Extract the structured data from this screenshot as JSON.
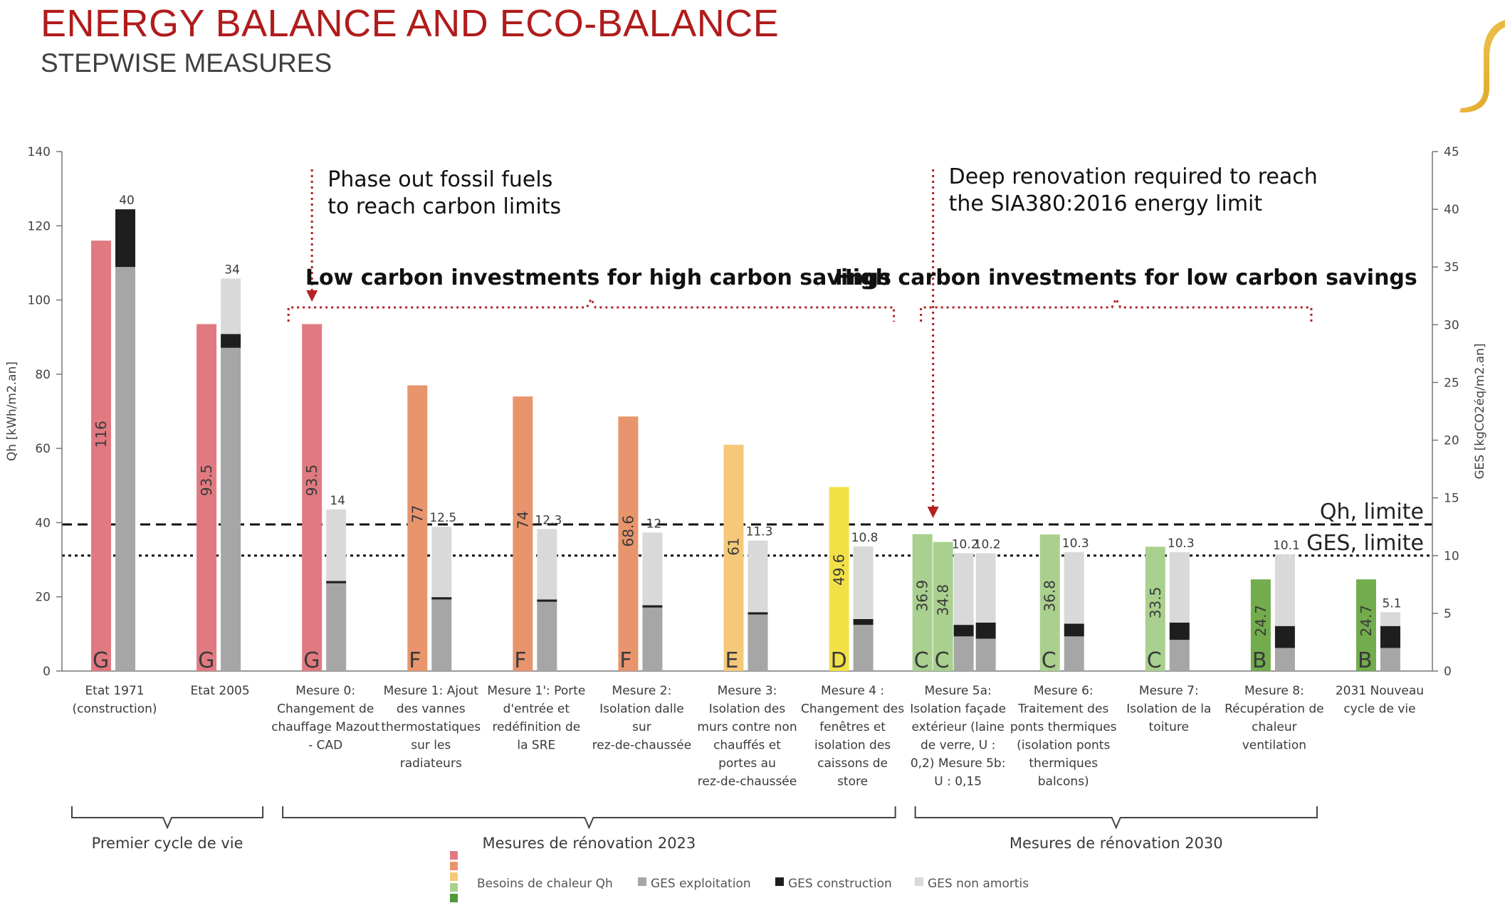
{
  "header": {
    "title": "ENERGY BALANCE AND ECO-BALANCE",
    "subtitle": "STEPWISE MEASURES"
  },
  "chart_data": {
    "type": "bar",
    "y_left": {
      "label": "Qh [kWh/m2.an]",
      "lim": [
        0,
        140
      ],
      "ticks": [
        0,
        20,
        40,
        60,
        80,
        100,
        120,
        140
      ]
    },
    "y_right": {
      "label": "GES [kgCO2éq/m2.an]",
      "lim": [
        0,
        45
      ],
      "ticks": [
        0,
        5,
        10,
        15,
        20,
        25,
        30,
        35,
        40,
        45
      ]
    },
    "reference_lines": [
      {
        "label": "Qh, limite",
        "axis": "left",
        "value": 39.5,
        "style": "dashed"
      },
      {
        "label": "GES, limite",
        "axis": "right",
        "value": 10,
        "style": "dotted"
      }
    ],
    "categories": [
      {
        "label": "Etat 1971 (construction)",
        "qh": [
          {
            "value": 116,
            "label": "116",
            "energy_class": "G",
            "color": "#e07a80"
          }
        ],
        "ges": [
          {
            "exploitation": 35,
            "construction": 5,
            "non_amortis": 0,
            "label": "40"
          }
        ]
      },
      {
        "label": "Etat 2005",
        "qh": [
          {
            "value": 93.5,
            "label": "93.5",
            "energy_class": "G",
            "color": "#e07a80"
          }
        ],
        "ges": [
          {
            "exploitation": 28,
            "construction": 1.2,
            "non_amortis": 4.8,
            "label": "34"
          }
        ]
      },
      {
        "label": "Mesure 0: Changement de chauffage Mazout - CAD",
        "qh": [
          {
            "value": 93.5,
            "label": "93.5",
            "energy_class": "G",
            "color": "#e07a80"
          }
        ],
        "ges": [
          {
            "exploitation": 7.6,
            "construction": 0.2,
            "non_amortis": 6.2,
            "label": "14"
          }
        ]
      },
      {
        "label": "Mesure 1: Ajout des vannes thermostatiques sur les radiateurs",
        "qh": [
          {
            "value": 77,
            "label": "77",
            "energy_class": "F",
            "color": "#e8956d"
          }
        ],
        "ges": [
          {
            "exploitation": 6.2,
            "construction": 0.2,
            "non_amortis": 6.1,
            "label": "12.5"
          }
        ]
      },
      {
        "label": "Mesure 1': Porte d'entrée et redéfinition de la SRE",
        "qh": [
          {
            "value": 74,
            "label": "74",
            "energy_class": "F",
            "color": "#e8956d"
          }
        ],
        "ges": [
          {
            "exploitation": 6,
            "construction": 0.2,
            "non_amortis": 6.1,
            "label": "12.3"
          }
        ]
      },
      {
        "label": "Mesure 2: Isolation dalle sur rez-de-chaussée",
        "qh": [
          {
            "value": 68.6,
            "label": "68.6",
            "energy_class": "F",
            "color": "#e8956d"
          }
        ],
        "ges": [
          {
            "exploitation": 5.5,
            "construction": 0.2,
            "non_amortis": 6.3,
            "label": "12"
          }
        ]
      },
      {
        "label": "Mesure 3: Isolation des murs contre non chauffés et portes au rez-de-chaussée",
        "qh": [
          {
            "value": 61,
            "label": "61",
            "energy_class": "E",
            "color": "#f5c979"
          }
        ],
        "ges": [
          {
            "exploitation": 4.9,
            "construction": 0.2,
            "non_amortis": 6.2,
            "label": "11.3"
          }
        ]
      },
      {
        "label": "Mesure 4 : Changement des fenêtres et isolation des caissons de store",
        "qh": [
          {
            "value": 49.6,
            "label": "49.6",
            "energy_class": "D",
            "color": "#f2e146"
          }
        ],
        "ges": [
          {
            "exploitation": 4,
            "construction": 0.5,
            "non_amortis": 6.3,
            "label": "10.8"
          }
        ]
      },
      {
        "label": "Mesure 5a: Isolation façade extérieur (laine de verre, U : 0,2) Mesure 5b: U : 0,15",
        "qh": [
          {
            "value": 36.9,
            "label": "36.9",
            "energy_class": "C",
            "color": "#a9d08e"
          },
          {
            "value": 34.8,
            "label": "34.8",
            "energy_class": "C",
            "color": "#a9d08e"
          }
        ],
        "ges": [
          {
            "exploitation": 3,
            "construction": 1,
            "non_amortis": 6.2,
            "label": "10.2"
          },
          {
            "exploitation": 2.8,
            "construction": 1.4,
            "non_amortis": 6,
            "label": "10.2"
          }
        ]
      },
      {
        "label": "Mesure 6: Traitement des ponts thermiques (isolation ponts thermiques balcons)",
        "qh": [
          {
            "value": 36.8,
            "label": "36.8",
            "energy_class": "C",
            "color": "#a9d08e"
          }
        ],
        "ges": [
          {
            "exploitation": 3,
            "construction": 1.1,
            "non_amortis": 6.2,
            "label": "10.3"
          }
        ]
      },
      {
        "label": "Mesure 7: Isolation de la toiture",
        "qh": [
          {
            "value": 33.5,
            "label": "33.5",
            "energy_class": "C",
            "color": "#a9d08e"
          }
        ],
        "ges": [
          {
            "exploitation": 2.7,
            "construction": 1.5,
            "non_amortis": 6.1,
            "label": "10.3"
          }
        ]
      },
      {
        "label": "Mesure 8: Récupération de chaleur ventilation",
        "qh": [
          {
            "value": 24.7,
            "label": "24.7",
            "energy_class": "B",
            "color": "#72ac4d"
          }
        ],
        "ges": [
          {
            "exploitation": 2,
            "construction": 1.9,
            "non_amortis": 6.2,
            "label": "10.1"
          }
        ]
      },
      {
        "label": "2031 Nouveau cycle de vie",
        "qh": [
          {
            "value": 24.7,
            "label": "24.7",
            "energy_class": "B",
            "color": "#72ac4d"
          }
        ],
        "ges": [
          {
            "exploitation": 2,
            "construction": 1.9,
            "non_amortis": 1.2,
            "label": "5.1"
          }
        ]
      }
    ],
    "groups": [
      {
        "label": "Premier cycle de vie",
        "from": 0,
        "to": 1
      },
      {
        "label": "Mesures de rénovation 2023",
        "from": 2,
        "to": 7
      },
      {
        "label": "Mesures de rénovation 2030",
        "from": 8,
        "to": 11
      }
    ],
    "annotations": [
      {
        "text": "Phase out fossil fuels",
        "line2": "to reach carbon limits",
        "arrow_to_category": 2
      },
      {
        "text": "Deep renovation required to reach",
        "line2": "the SIA380:2016 energy limit",
        "arrow_to_category": 8
      },
      {
        "text": "Low carbon investments for high carbon savings",
        "span": [
          2,
          7
        ]
      },
      {
        "text": "High carbon investments for low carbon savings",
        "span": [
          8,
          11
        ]
      }
    ],
    "legend": [
      {
        "label": "Besoins de chaleur Qh",
        "color": "#e07a80",
        "colors": [
          "#e07a80",
          "#e8956d",
          "#f5c979",
          "#a9d08e",
          "#4f9a3a"
        ]
      },
      {
        "label": "GES exploitation",
        "color": "#a6a6a6"
      },
      {
        "label": "GES construction",
        "color": "#1e1e1e"
      },
      {
        "label": "GES non amortis",
        "color": "#d9d9d9"
      }
    ],
    "colors": {
      "ges_exploitation": "#a6a6a6",
      "ges_construction": "#1e1e1e",
      "ges_non_amortis": "#d9d9d9",
      "annotation": "#b22222"
    }
  }
}
